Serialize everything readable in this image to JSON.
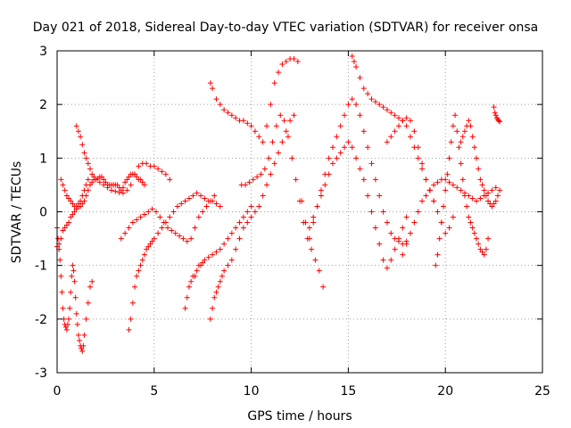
{
  "chart_data": {
    "type": "scatter",
    "title": "Day 021 of 2018, Sidereal Day-to-day VTEC variation (SDTVAR) for receiver onsa",
    "xlabel": "GPS time / hours",
    "ylabel": "SDTVAR / TECUs",
    "xlim": [
      0,
      25
    ],
    "ylim": [
      -3,
      3
    ],
    "xticks": [
      0,
      5,
      10,
      15,
      20,
      25
    ],
    "yticks": [
      -3,
      -2,
      -1,
      0,
      1,
      2,
      3
    ],
    "xtick_labels": [
      "0",
      "5",
      "10",
      "15",
      "20",
      "25"
    ],
    "ytick_labels": [
      "-3",
      "-2",
      "-1",
      "0",
      "1",
      "2",
      "3"
    ],
    "grid": true,
    "marker": "plus",
    "color": "#ff0000",
    "series": [
      {
        "x": [
          0.0,
          0.1,
          0.2,
          0.3,
          0.4,
          0.5,
          0.6,
          0.7,
          0.8,
          0.9,
          1.0,
          1.1,
          1.2,
          1.3,
          1.4,
          1.5,
          1.6,
          1.7,
          1.8,
          1.9,
          2.0,
          2.1,
          2.2,
          2.3,
          2.4,
          2.5,
          2.6,
          2.7,
          2.8,
          2.9,
          3.0,
          3.1,
          3.2,
          3.3,
          3.4,
          3.5,
          3.6,
          3.7,
          3.8,
          3.9,
          4.0,
          4.1,
          4.2,
          4.3,
          4.4,
          4.5
        ],
        "y": [
          -0.65,
          -0.6,
          -0.5,
          -0.35,
          -0.3,
          -0.25,
          -0.2,
          -0.1,
          -0.05,
          0.0,
          0.05,
          0.1,
          0.1,
          0.15,
          0.2,
          0.3,
          0.4,
          0.5,
          0.55,
          0.6,
          0.6,
          0.62,
          0.65,
          0.65,
          0.6,
          0.55,
          0.5,
          0.5,
          0.5,
          0.5,
          0.5,
          0.5,
          0.45,
          0.4,
          0.45,
          0.55,
          0.6,
          0.65,
          0.7,
          0.7,
          0.7,
          0.65,
          0.6,
          0.6,
          0.55,
          0.5
        ]
      },
      {
        "x": [
          0.0,
          0.05,
          0.1,
          0.15,
          0.2,
          0.25,
          0.3,
          0.35,
          0.4,
          0.45,
          0.5,
          0.55,
          0.6,
          0.65,
          0.7,
          0.75,
          0.8,
          0.85,
          0.9,
          0.95,
          1.0,
          1.05,
          1.1,
          1.15,
          1.2,
          1.25,
          1.3,
          1.35,
          1.4,
          1.5,
          1.6,
          1.7,
          1.8
        ],
        "y": [
          -0.3,
          -0.5,
          -0.7,
          -0.9,
          -1.2,
          -1.5,
          -1.8,
          -2.0,
          -2.1,
          -2.15,
          -2.2,
          -2.1,
          -2.0,
          -1.8,
          -1.5,
          -1.2,
          -1.0,
          -1.1,
          -1.3,
          -1.6,
          -1.9,
          -2.1,
          -2.3,
          -2.4,
          -2.5,
          -2.55,
          -2.6,
          -2.5,
          -2.3,
          -2.0,
          -1.7,
          -1.4,
          -1.3
        ]
      },
      {
        "x": [
          1.0,
          1.1,
          1.2,
          1.3,
          1.4,
          1.5,
          1.6,
          1.7,
          1.8,
          1.9,
          2.0,
          2.2,
          2.4,
          2.6,
          2.8,
          3.0,
          3.2,
          3.4,
          3.6,
          3.8,
          4.0,
          4.2,
          4.4,
          4.6,
          4.8,
          5.0,
          5.2,
          5.4,
          5.6,
          5.8
        ],
        "y": [
          1.6,
          1.5,
          1.4,
          1.25,
          1.1,
          1.0,
          0.9,
          0.8,
          0.7,
          0.65,
          0.6,
          0.55,
          0.5,
          0.45,
          0.4,
          0.38,
          0.36,
          0.35,
          0.4,
          0.5,
          0.7,
          0.85,
          0.9,
          0.9,
          0.85,
          0.85,
          0.8,
          0.75,
          0.7,
          0.6
        ]
      },
      {
        "x": [
          3.7,
          3.8,
          3.9,
          4.0,
          4.1,
          4.2,
          4.3,
          4.4,
          4.5,
          4.6,
          4.7,
          4.8,
          4.9,
          5.0,
          5.2,
          5.4,
          5.6,
          5.8,
          6.0,
          6.2,
          6.4,
          6.6,
          6.8,
          7.0,
          7.2,
          7.4,
          7.6,
          7.8,
          8.0,
          8.2,
          8.4
        ],
        "y": [
          -2.2,
          -2.0,
          -1.7,
          -1.4,
          -1.2,
          -1.1,
          -1.0,
          -0.9,
          -0.8,
          -0.7,
          -0.65,
          -0.6,
          -0.55,
          -0.5,
          -0.4,
          -0.3,
          -0.2,
          -0.1,
          0.0,
          0.1,
          0.15,
          0.2,
          0.25,
          0.3,
          0.35,
          0.3,
          0.25,
          0.2,
          0.2,
          0.15,
          0.1
        ]
      },
      {
        "x": [
          3.3,
          3.5,
          3.7,
          3.9,
          4.1,
          4.3,
          4.5,
          4.7,
          4.9,
          5.1,
          5.3,
          5.5,
          5.7,
          5.9,
          6.1,
          6.3,
          6.5,
          6.7,
          6.9,
          7.1,
          7.3,
          7.5,
          7.7,
          7.9,
          8.1
        ],
        "y": [
          -0.5,
          -0.4,
          -0.3,
          -0.2,
          -0.15,
          -0.1,
          -0.05,
          0.0,
          0.05,
          0.0,
          -0.1,
          -0.2,
          -0.3,
          -0.35,
          -0.4,
          -0.45,
          -0.5,
          -0.55,
          -0.5,
          -0.3,
          -0.1,
          0.0,
          0.1,
          0.2,
          0.3
        ]
      },
      {
        "x": [
          6.6,
          6.7,
          6.8,
          6.9,
          7.0,
          7.1,
          7.2,
          7.3,
          7.4,
          7.5,
          7.6,
          7.8,
          8.0,
          8.2,
          8.4,
          8.6,
          8.8,
          9.0,
          9.2,
          9.4,
          9.6,
          9.8,
          10.0
        ],
        "y": [
          -1.8,
          -1.6,
          -1.4,
          -1.3,
          -1.2,
          -1.2,
          -1.1,
          -1.0,
          -1.0,
          -0.95,
          -0.9,
          -0.85,
          -0.8,
          -0.75,
          -0.7,
          -0.6,
          -0.5,
          -0.4,
          -0.3,
          -0.2,
          -0.1,
          0.0,
          0.1
        ]
      },
      {
        "x": [
          7.9,
          8.0,
          8.1,
          8.2,
          8.3,
          8.4,
          8.5,
          8.6,
          8.8,
          9.0,
          9.2,
          9.4,
          9.6,
          9.8,
          10.0,
          10.2,
          10.4,
          10.6,
          10.8,
          11.0,
          11.2,
          11.4,
          11.6,
          11.8,
          12.0,
          12.2
        ],
        "y": [
          -2.0,
          -1.8,
          -1.6,
          -1.5,
          -1.4,
          -1.3,
          -1.2,
          -1.1,
          -1.0,
          -0.9,
          -0.7,
          -0.5,
          -0.3,
          -0.2,
          -0.1,
          0.0,
          0.1,
          0.3,
          0.5,
          0.7,
          0.9,
          1.1,
          1.3,
          1.5,
          1.7,
          1.8
        ]
      },
      {
        "x": [
          7.9,
          8.0,
          8.2,
          8.4,
          8.6,
          8.8,
          9.0,
          9.2,
          9.4,
          9.6,
          9.8,
          10.0,
          10.2,
          10.4,
          10.6,
          10.8,
          11.0,
          11.2,
          11.4,
          11.6,
          11.8,
          12.0,
          12.2,
          12.4
        ],
        "y": [
          2.4,
          2.3,
          2.1,
          2.0,
          1.9,
          1.85,
          1.8,
          1.75,
          1.7,
          1.7,
          1.65,
          1.6,
          1.5,
          1.4,
          1.3,
          1.6,
          2.0,
          2.4,
          2.6,
          2.75,
          2.8,
          2.85,
          2.85,
          2.8
        ]
      },
      {
        "x": [
          9.5,
          9.7,
          9.9,
          10.1,
          10.3,
          10.5,
          10.7,
          10.9,
          11.1,
          11.3,
          11.5,
          11.7,
          11.9,
          12.1,
          12.3,
          12.5,
          12.7,
          12.9,
          13.1,
          13.3,
          13.5,
          13.7
        ],
        "y": [
          0.5,
          0.5,
          0.55,
          0.6,
          0.65,
          0.7,
          0.8,
          1.0,
          1.3,
          1.6,
          1.8,
          1.7,
          1.4,
          1.0,
          0.6,
          0.2,
          -0.2,
          -0.5,
          -0.7,
          -0.9,
          -1.1,
          -1.4
        ]
      },
      {
        "x": [
          12.6,
          12.8,
          13.0,
          13.2,
          13.4,
          13.6,
          13.8,
          14.0,
          14.2,
          14.4,
          14.6,
          14.8,
          15.0,
          15.2,
          15.4,
          15.6,
          15.8,
          16.0,
          16.2,
          16.4,
          16.6,
          16.8,
          17.0,
          17.2,
          17.4,
          17.6,
          17.8,
          18.0
        ],
        "y": [
          0.2,
          -0.2,
          -0.5,
          -0.2,
          0.1,
          0.4,
          0.7,
          1.0,
          1.2,
          1.4,
          1.6,
          1.8,
          2.0,
          2.1,
          2.0,
          1.8,
          1.5,
          1.2,
          0.9,
          0.6,
          0.3,
          0.0,
          -0.2,
          -0.4,
          -0.5,
          -0.55,
          -0.6,
          -0.55
        ]
      },
      {
        "x": [
          13.0,
          13.2,
          13.4,
          13.6,
          13.8,
          14.0,
          14.2,
          14.4,
          14.6,
          14.8,
          15.0,
          15.2,
          15.4,
          15.6,
          15.8,
          16.0,
          16.2,
          16.4,
          16.6,
          16.8,
          17.0,
          17.2,
          17.4,
          17.6,
          17.8,
          18.0
        ],
        "y": [
          -0.3,
          -0.1,
          0.1,
          0.3,
          0.5,
          0.7,
          0.9,
          1.0,
          1.1,
          1.2,
          1.3,
          1.2,
          1.0,
          0.8,
          0.6,
          0.3,
          0.0,
          -0.3,
          -0.6,
          -0.9,
          -1.05,
          -0.9,
          -0.7,
          -0.5,
          -0.3,
          -0.1
        ]
      },
      {
        "x": [
          15.2,
          15.3,
          15.4,
          15.6,
          15.8,
          16.0,
          16.2,
          16.4,
          16.6,
          16.8,
          17.0,
          17.2,
          17.4,
          17.6,
          17.8,
          18.0,
          18.2,
          18.4,
          18.6,
          18.8,
          19.0,
          19.2,
          19.4
        ],
        "y": [
          2.9,
          2.8,
          2.7,
          2.5,
          2.3,
          2.2,
          2.1,
          2.05,
          2.0,
          1.95,
          1.9,
          1.85,
          1.8,
          1.75,
          1.7,
          1.6,
          1.4,
          1.2,
          1.0,
          0.8,
          0.6,
          0.4,
          0.2
        ]
      },
      {
        "x": [
          17.0,
          17.2,
          17.4,
          17.6,
          17.8,
          18.0,
          18.2,
          18.4,
          18.6,
          18.8,
          19.0,
          19.2,
          19.4,
          19.6,
          19.8,
          20.0,
          20.2,
          20.4
        ],
        "y": [
          1.3,
          1.4,
          1.5,
          1.6,
          1.7,
          1.75,
          1.7,
          1.5,
          1.2,
          0.9,
          0.6,
          0.4,
          0.2,
          0.0,
          -0.2,
          -0.4,
          -0.3,
          -0.1
        ]
      },
      {
        "x": [
          17.8,
          18.0,
          18.2,
          18.4,
          18.6,
          18.8,
          19.0,
          19.2,
          19.4,
          19.6,
          19.8,
          20.0,
          20.2,
          20.4,
          20.6,
          20.8,
          21.0,
          21.2,
          21.4,
          21.6,
          21.8,
          22.0,
          22.2,
          22.4,
          22.6
        ],
        "y": [
          -0.8,
          -0.6,
          -0.4,
          -0.2,
          0.0,
          0.2,
          0.3,
          0.4,
          0.5,
          0.55,
          0.6,
          0.6,
          0.55,
          0.5,
          0.45,
          0.4,
          0.35,
          0.3,
          0.25,
          0.2,
          0.25,
          0.3,
          0.35,
          0.4,
          0.45
        ]
      },
      {
        "x": [
          19.5,
          19.6,
          19.7,
          19.8,
          19.9,
          20.0,
          20.1,
          20.2,
          20.3,
          20.4,
          20.5,
          20.6,
          20.7,
          20.8,
          20.9,
          21.0,
          21.1,
          21.2,
          21.3,
          21.4,
          21.5,
          21.6,
          21.7,
          21.8,
          21.9,
          22.0,
          22.1,
          22.2
        ],
        "y": [
          -1.0,
          -0.8,
          -0.5,
          -0.2,
          0.1,
          0.4,
          0.7,
          1.0,
          1.3,
          1.6,
          1.8,
          1.5,
          1.2,
          0.9,
          0.6,
          0.3,
          0.1,
          -0.1,
          -0.2,
          -0.3,
          -0.4,
          -0.5,
          -0.6,
          -0.7,
          -0.75,
          -0.8,
          -0.7,
          -0.5
        ]
      },
      {
        "x": [
          20.8,
          20.9,
          21.0,
          21.1,
          21.2,
          21.3,
          21.4,
          21.5,
          21.6,
          21.7,
          21.8,
          21.9,
          22.0,
          22.1,
          22.2,
          22.3,
          22.4,
          22.5,
          22.6,
          22.7,
          22.8
        ],
        "y": [
          1.3,
          1.4,
          1.5,
          1.6,
          1.7,
          1.6,
          1.4,
          1.2,
          1.0,
          0.8,
          0.6,
          0.5,
          0.4,
          0.3,
          0.2,
          0.15,
          0.1,
          0.15,
          0.2,
          0.3,
          0.4
        ]
      },
      {
        "x": [
          22.5,
          22.55,
          22.6,
          22.65,
          22.7,
          22.75,
          22.8
        ],
        "y": [
          1.95,
          1.85,
          1.8,
          1.75,
          1.72,
          1.7,
          1.68
        ]
      },
      {
        "x": [
          0.2,
          0.3,
          0.4,
          0.5,
          0.6,
          0.7,
          0.8,
          0.9,
          1.0,
          1.1,
          1.2,
          1.3,
          1.4,
          1.5,
          1.6
        ],
        "y": [
          0.6,
          0.5,
          0.4,
          0.3,
          0.25,
          0.2,
          0.15,
          0.1,
          0.1,
          0.15,
          0.2,
          0.3,
          0.4,
          0.5,
          0.6
        ]
      }
    ]
  }
}
